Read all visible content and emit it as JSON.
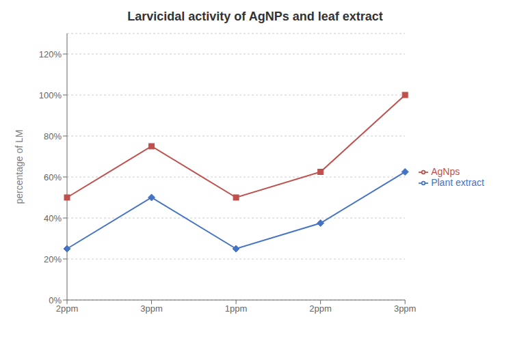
{
  "chart_data": {
    "type": "line",
    "title": "Larvicidal activity of AgNPs and leaf extract",
    "y_label": "percentage of LM",
    "categories": [
      "2ppm",
      "3ppm",
      "1ppm",
      "2ppm",
      "3ppm"
    ],
    "series": [
      {
        "name": "Plant extract",
        "color": "#4472C4",
        "marker": "diamond",
        "values": [
          0.25,
          0.5,
          0.25,
          0.375,
          0.625
        ]
      },
      {
        "name": "AgNps",
        "color": "#C0504D",
        "marker": "square",
        "values": [
          0.5,
          0.75,
          0.5,
          0.625,
          1.0
        ]
      }
    ],
    "ylim": [
      0,
      1.3
    ],
    "yticks": [
      {
        "value": 0,
        "label": "0%"
      },
      {
        "value": 0.2,
        "label": "20%"
      },
      {
        "value": 0.4,
        "label": "40%"
      },
      {
        "value": 0.6,
        "label": "60%"
      },
      {
        "value": 0.8,
        "label": "80%"
      },
      {
        "value": 1.0,
        "label": "100%"
      },
      {
        "value": 1.2,
        "label": "120%"
      }
    ],
    "grid": true,
    "legend": "right"
  }
}
